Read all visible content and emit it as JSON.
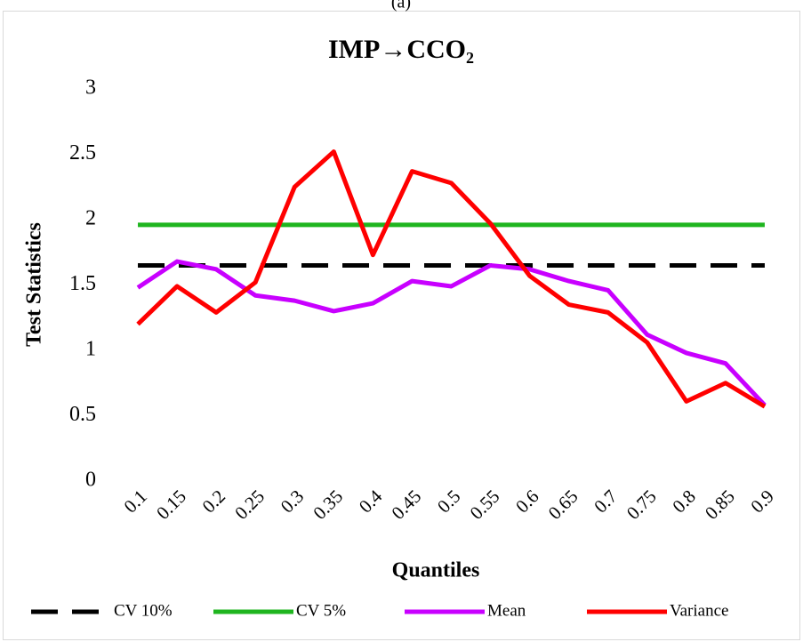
{
  "chart_data": {
    "type": "line",
    "panel_label": "(a)",
    "title": "IMP→CCO₂",
    "x_label": "Quantiles",
    "y_label": "Test Statistics",
    "categories": [
      "0.1",
      "0.15",
      "0.2",
      "0.25",
      "0.3",
      "0.35",
      "0.4",
      "0.45",
      "0.5",
      "0.55",
      "0.6",
      "0.65",
      "0.7",
      "0.75",
      "0.8",
      "0.85",
      "0.9"
    ],
    "ylim": [
      0,
      3
    ],
    "yticks": [
      0,
      0.5,
      1,
      1.5,
      2,
      2.5,
      3
    ],
    "grid": false,
    "legend": "bottom",
    "series": [
      {
        "name": "CV 10%",
        "color": "#000000",
        "dashed": true,
        "values": [
          1.65,
          1.65,
          1.65,
          1.65,
          1.65,
          1.65,
          1.65,
          1.65,
          1.65,
          1.65,
          1.65,
          1.65,
          1.65,
          1.65,
          1.65,
          1.65,
          1.65
        ]
      },
      {
        "name": "CV 5%",
        "color": "#1fb51f",
        "dashed": false,
        "values": [
          1.96,
          1.96,
          1.96,
          1.96,
          1.96,
          1.96,
          1.96,
          1.96,
          1.96,
          1.96,
          1.96,
          1.96,
          1.96,
          1.96,
          1.96,
          1.96,
          1.96
        ]
      },
      {
        "name": "Mean",
        "color": "#c800ff",
        "dashed": false,
        "values": [
          1.48,
          1.68,
          1.62,
          1.42,
          1.38,
          1.3,
          1.36,
          1.53,
          1.49,
          1.65,
          1.62,
          1.53,
          1.46,
          1.12,
          0.98,
          0.9,
          0.58
        ]
      },
      {
        "name": "Variance",
        "color": "#ff0000",
        "dashed": false,
        "values": [
          1.2,
          1.49,
          1.29,
          1.52,
          2.25,
          2.52,
          1.73,
          2.37,
          2.28,
          1.97,
          1.57,
          1.35,
          1.29,
          1.06,
          0.61,
          0.75,
          0.57
        ]
      }
    ]
  }
}
